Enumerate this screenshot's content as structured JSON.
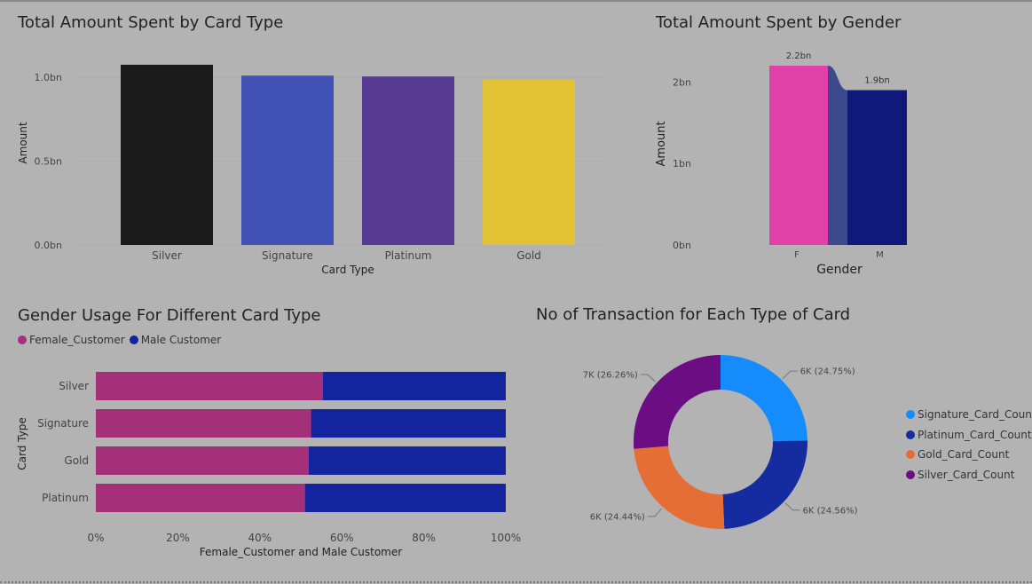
{
  "panels": {
    "card_amount": {
      "title": "Total Amount Spent by Card Type"
    },
    "gender_amount": {
      "title": "Total Amount Spent by Gender"
    },
    "gender_usage": {
      "title": "Gender Usage For Different Card Type"
    },
    "transactions": {
      "title": "No of Transaction for Each Type of Card"
    }
  },
  "chart_data": [
    {
      "id": "card_amount",
      "type": "bar",
      "title": "Total Amount Spent by Card Type",
      "xlabel": "Card Type",
      "ylabel": "Amount",
      "categories": [
        "Silver",
        "Signature",
        "Platinum",
        "Gold"
      ],
      "values": [
        1.075,
        1.01,
        1.005,
        0.985
      ],
      "colors": [
        "#1b1b1b",
        "#4251b5",
        "#573a91",
        "#e2c234"
      ],
      "yticks": [
        0,
        0.5,
        1.0
      ],
      "ytick_labels": [
        "0.0bn",
        "0.5bn",
        "1.0bn"
      ],
      "unit": "bn",
      "ylim": [
        0,
        1.08
      ],
      "grid": true
    },
    {
      "id": "gender_amount",
      "type": "bar",
      "title": "Total Amount Spent by Gender",
      "xlabel": "Gender",
      "ylabel": "Amount",
      "categories": [
        "F",
        "M"
      ],
      "values": [
        2.2,
        1.9
      ],
      "data_labels": [
        "2.2bn",
        "1.9bn"
      ],
      "colors": [
        "#e040a8",
        "#0e197a"
      ],
      "ribbon_color": "#3a4a8c",
      "yticks": [
        0,
        1,
        2
      ],
      "ytick_labels": [
        "0bn",
        "1bn",
        "2bn"
      ],
      "unit": "bn",
      "ylim": [
        0,
        2.2
      ],
      "grid": false
    },
    {
      "id": "gender_usage",
      "type": "bar",
      "orientation": "horizontal-100%-stacked",
      "title": "Gender Usage For Different Card Type",
      "xlabel": "Female_Customer and Male Customer",
      "ylabel": "Card Type",
      "categories": [
        "Silver",
        "Signature",
        "Gold",
        "Platinum"
      ],
      "series": [
        {
          "name": "Female_Customer",
          "values": [
            55.4,
            52.5,
            51.9,
            51.0
          ],
          "color": "#a43079"
        },
        {
          "name": "Male Customer",
          "values": [
            44.6,
            47.5,
            48.1,
            49.0
          ],
          "color": "#14239e"
        }
      ],
      "xticks": [
        0,
        20,
        40,
        60,
        80,
        100
      ],
      "xtick_labels": [
        "0%",
        "20%",
        "40%",
        "60%",
        "80%",
        "100%"
      ],
      "xlim": [
        0,
        100
      ],
      "legend": "top-left"
    },
    {
      "id": "transactions",
      "type": "pie",
      "donut": true,
      "title": "No of Transaction for Each Type of Card",
      "slices": [
        {
          "name": "Signature_Card_Count",
          "value": 24.75,
          "label": "6K (24.75%)",
          "color": "#148cfc"
        },
        {
          "name": "Platinum_Card_Count",
          "value": 24.56,
          "label": "6K (24.56%)",
          "color": "#152ba0"
        },
        {
          "name": "Gold_Card_Count",
          "value": 24.44,
          "label": "6K (24.44%)",
          "color": "#e56d36"
        },
        {
          "name": "Silver_Card_Count",
          "value": 26.26,
          "label": "7K (26.26%)",
          "color": "#6b0e84"
        }
      ],
      "legend": "right"
    }
  ]
}
